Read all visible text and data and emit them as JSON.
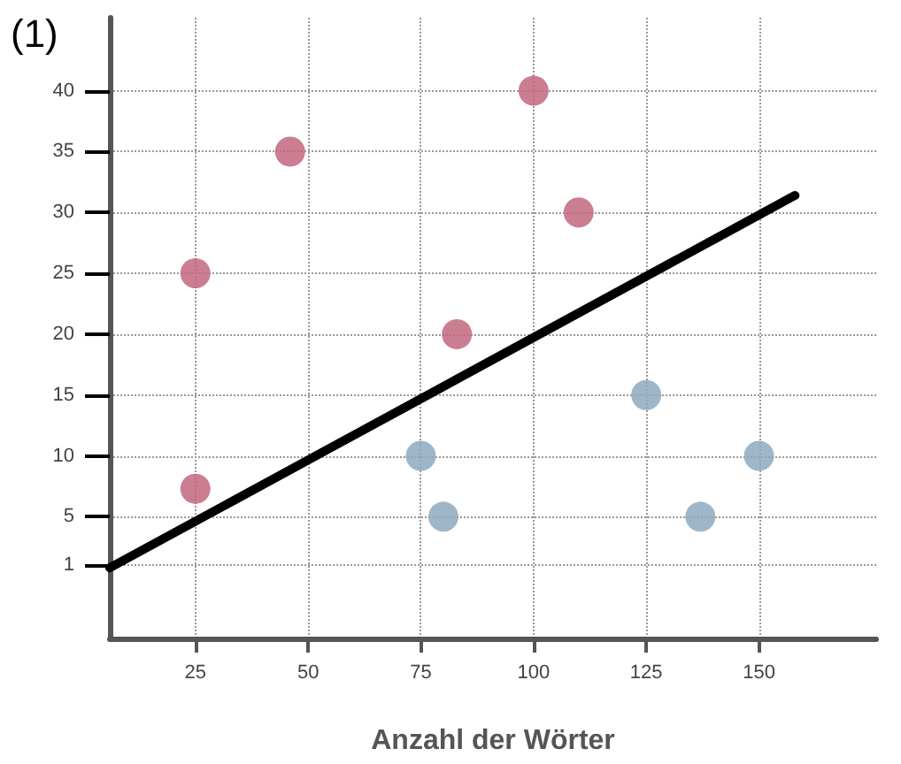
{
  "chart_data": {
    "type": "scatter",
    "xlabel": "Anzahl der Wörter",
    "annotations": [
      "(1)"
    ],
    "xlim": [
      6,
      176
    ],
    "ylim": [
      -5,
      46
    ],
    "xticks": [
      25,
      50,
      75,
      100,
      125,
      150
    ],
    "yticks": [
      1,
      5,
      10,
      15,
      20,
      25,
      30,
      35,
      40
    ],
    "grid": true,
    "marker": "circle",
    "series": [
      {
        "color": "#c2677f",
        "x": [
          25,
          25,
          46,
          83,
          100,
          110
        ],
        "values": [
          25,
          7.3,
          35,
          20,
          40,
          30
        ]
      },
      {
        "color": "#8ea9bf",
        "x": [
          75,
          80,
          125,
          137,
          150
        ],
        "values": [
          10,
          5,
          15,
          5,
          10
        ]
      },
      {
        "type": "line",
        "color": "#000000",
        "x": [
          6,
          158
        ],
        "values": [
          0.8,
          31.4
        ],
        "marker": "none"
      }
    ]
  }
}
